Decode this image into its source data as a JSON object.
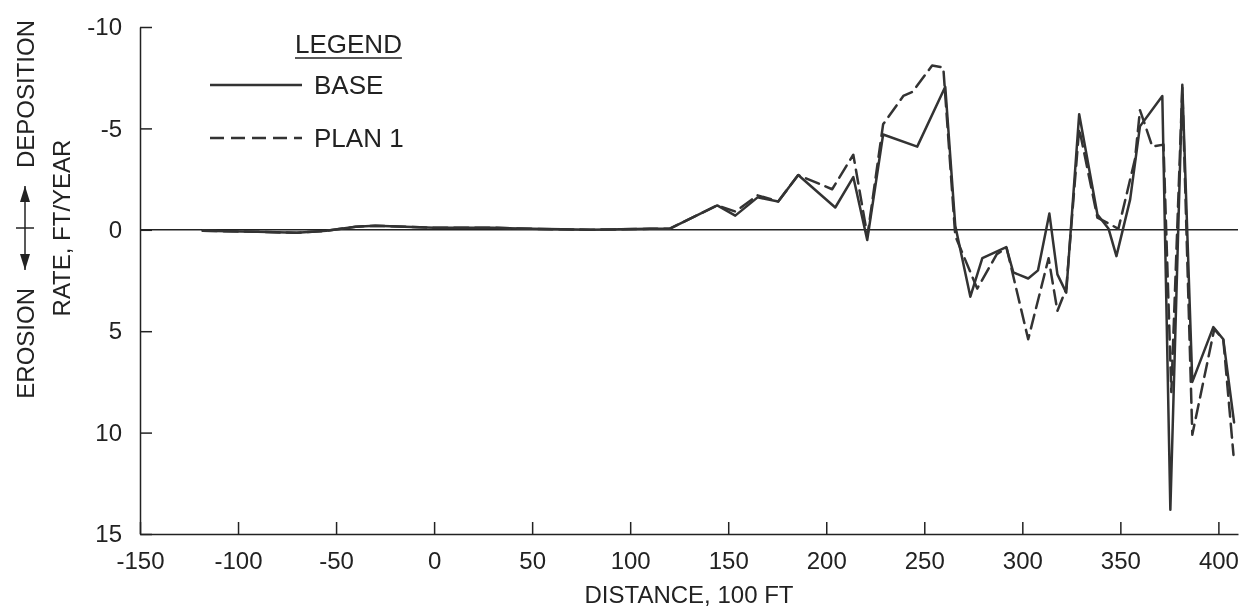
{
  "chart_data": {
    "type": "line",
    "xlabel": "DISTANCE, 100 FT",
    "ylabel": "RATE, FT/YEAR",
    "annotations": [
      "EROSION",
      "DEPOSITION"
    ],
    "legend_title": "LEGEND",
    "legend": "top left",
    "grid": false,
    "marker": "none",
    "xlim": [
      -150,
      410
    ],
    "xticks": [
      -150,
      -100,
      -50,
      0,
      50,
      100,
      150,
      200,
      250,
      300,
      350,
      400
    ],
    "ylim": [
      15,
      -10
    ],
    "yticks": [
      -10,
      -5,
      0,
      5,
      10,
      15
    ],
    "ref_lines": [
      {
        "axis": "y",
        "value": 0,
        "label": null
      }
    ],
    "series": [
      {
        "name": "BASE",
        "color": "#333333",
        "line_style": "solid",
        "x": [
          -118,
          -90,
          -70,
          -55,
          -40,
          -30,
          0,
          30,
          50,
          80,
          110,
          120,
          144.4,
          153.6,
          165,
          175.5,
          185.7,
          204.6,
          213.8,
          220.9,
          229,
          246.4,
          260.7,
          265.8,
          273.5,
          279.6,
          291.8,
          295.4,
          303,
          308,
          313.8,
          317.9,
          322.4,
          329,
          338.3,
          344,
          348,
          355,
          360,
          371.4,
          375.5,
          381.6,
          386.7,
          397.4,
          402.5,
          408
        ],
        "values": [
          0.05,
          0.1,
          0.15,
          0.05,
          -0.15,
          -0.2,
          -0.1,
          -0.1,
          -0.05,
          0,
          -0.05,
          -0.05,
          -1.2,
          -0.7,
          -1.6,
          -1.4,
          -2.7,
          -1.1,
          -2.6,
          0.5,
          -4.7,
          -4.1,
          -7.05,
          -0.2,
          3.3,
          1.4,
          0.85,
          2.1,
          2.4,
          2,
          -0.8,
          2.2,
          3.1,
          -5.7,
          -0.75,
          -0.05,
          1.3,
          -1.5,
          -5.1,
          -6.6,
          13.8,
          -7.15,
          7.5,
          4.8,
          5.4,
          9.5
        ]
      },
      {
        "name": "PLAN 1",
        "color": "#333333",
        "line_style": "dashed",
        "x": [
          -118,
          -90,
          -70,
          -55,
          -40,
          -30,
          0,
          30,
          50,
          80,
          110,
          120,
          144.4,
          153.6,
          165,
          175.5,
          185.7,
          203,
          213.8,
          221,
          229,
          239.3,
          244,
          254,
          259.7,
          265.8,
          277,
          287,
          292,
          303,
          313.4,
          317.9,
          322.4,
          329,
          338.3,
          349,
          357.5,
          360,
          362.5,
          366.3,
          372,
          376,
          381.6,
          386.7,
          397.9,
          402.5,
          407.7
        ],
        "values": [
          0.05,
          0.1,
          0.15,
          0.05,
          -0.15,
          -0.2,
          -0.1,
          -0.1,
          -0.05,
          0,
          -0.05,
          -0.05,
          -1.2,
          -0.9,
          -1.7,
          -1.4,
          -2.7,
          -2,
          -3.7,
          0.3,
          -5.2,
          -6.6,
          -6.8,
          -8.1,
          -8,
          0.3,
          2.9,
          1.2,
          0.9,
          5.4,
          1.4,
          4,
          2.9,
          -5,
          -0.6,
          -0.05,
          -3.5,
          -5.9,
          -5.2,
          -4.1,
          -4.2,
          8,
          -7,
          10.1,
          4.9,
          5.4,
          11.1
        ]
      }
    ]
  }
}
